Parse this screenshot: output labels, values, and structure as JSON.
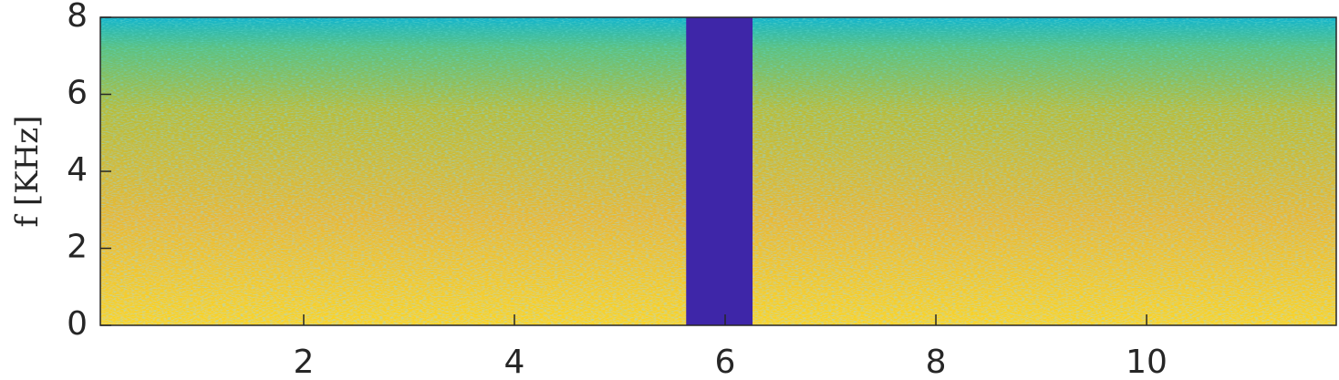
{
  "chart_data": {
    "type": "spectrogram",
    "ylabel": "f [KHz]",
    "xlim": [
      0.07,
      11.8
    ],
    "xticks": [
      2,
      4,
      6,
      8,
      10
    ],
    "ylim": [
      0,
      8
    ],
    "yticks": [
      0,
      2,
      4,
      6,
      8
    ],
    "colors": [
      "#f9d42a",
      "#e8b935",
      "#b8bd3a",
      "#5dc180",
      "#11b5cf"
    ],
    "silence": [
      5.63,
      6.26
    ],
    "silence_color": "#3e26a8"
  }
}
